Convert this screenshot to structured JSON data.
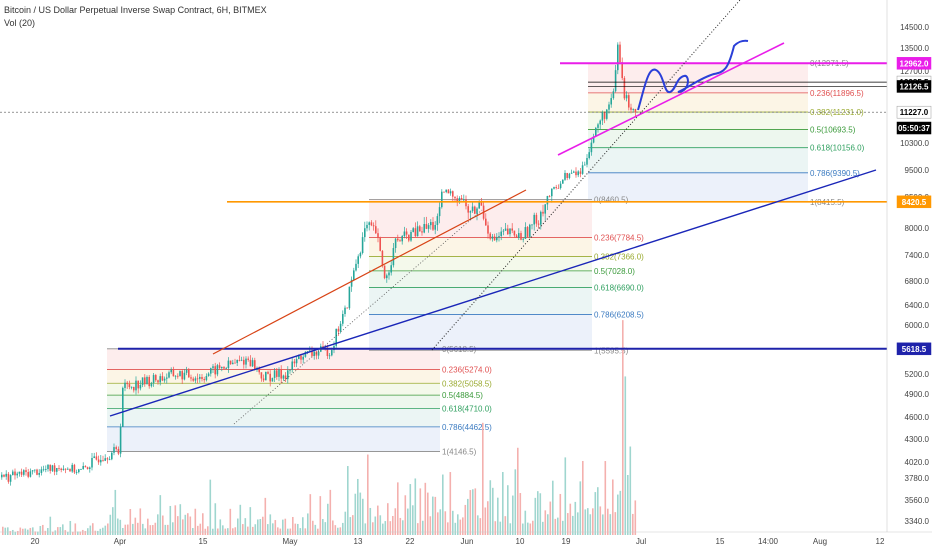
{
  "header": {
    "title": "Bitcoin / US Dollar Perpetual Inverse Swap Contract, 6H, BITMEX",
    "volume_label": "Vol (20)"
  },
  "chart_data": {
    "type": "candlestick",
    "symbol": "Bitcoin / US Dollar Perpetual Inverse Swap Contract",
    "interval": "6H",
    "exchange": "BITMEX",
    "indicators": [
      "Vol (20)"
    ],
    "y_scale": "log",
    "ylim": [
      3200,
      15000
    ],
    "y_ticks": [
      3340,
      3560,
      3780,
      4020,
      4300,
      4600,
      4900,
      5200,
      5600,
      6000,
      6400,
      6800,
      7400,
      8000,
      8500,
      9500,
      10300,
      11200,
      12700,
      13500,
      14500
    ],
    "y_tick_labels": [
      "3340.0",
      "3560.0",
      "3780.0",
      "4020.0",
      "4300.0",
      "4600.0",
      "4900.0",
      "5200.0",
      "5600.0",
      "6000.0",
      "6400.0",
      "6800.0",
      "7400.0",
      "8000.0",
      "8500.0",
      "9500.0",
      "10300.0",
      "11200.0",
      "12700.0",
      "13500.0",
      "14500.0"
    ],
    "x_axis_labels": [
      "20",
      "Apr",
      "15",
      "May",
      "13",
      "22",
      "Jun",
      "10",
      "19",
      "Jul",
      "15",
      "14:00",
      "Aug",
      "12"
    ],
    "price_flags": [
      {
        "label": "12962.0",
        "value": 12962,
        "bg": "#e91ee9",
        "fg": "#ffffff"
      },
      {
        "label": "12285.5",
        "value": 12285.5,
        "bg": "#ffffff",
        "fg": "#000000"
      },
      {
        "label": "12126.5",
        "value": 12126.5,
        "bg": "#000000",
        "fg": "#ffffff"
      },
      {
        "label": "11227.0",
        "value": 11227,
        "bg": "#ffffff",
        "fg": "#000000"
      },
      {
        "label": "05:50:37",
        "value": 10740,
        "bg": "#000000",
        "fg": "#ffffff"
      },
      {
        "label": "8420.5",
        "value": 8420.5,
        "bg": "#ff9800",
        "fg": "#ffffff"
      },
      {
        "label": "5618.5",
        "value": 5618.5,
        "bg": "#1e22aa",
        "fg": "#ffffff"
      }
    ],
    "horizontal_lines": [
      {
        "value": 12962,
        "color": "#e91ee9"
      },
      {
        "value": 12285.5,
        "color": "#000000"
      },
      {
        "value": 12126.5,
        "color": "#000000"
      },
      {
        "value": 11227,
        "color": "#555555"
      },
      {
        "value": 8420.5,
        "color": "#ff9800"
      },
      {
        "value": 5618.5,
        "color": "#1e22aa"
      }
    ],
    "fib_sets": [
      {
        "name": "fib-set-1",
        "color_zone": "april",
        "levels": [
          {
            "label": "0(5618.5)",
            "value": 5618.5,
            "color": "#888888"
          },
          {
            "label": "0.236(5274.0)",
            "value": 5274,
            "color": "#e05050"
          },
          {
            "label": "0.382(5058.5)",
            "value": 5058.5,
            "color": "#9aaa30"
          },
          {
            "label": "0.5(4884.5)",
            "value": 4884.5,
            "color": "#3a9a3a"
          },
          {
            "label": "0.618(4710.0)",
            "value": 4710,
            "color": "#30a060"
          },
          {
            "label": "0.786(4462.5)",
            "value": 4462.5,
            "color": "#3a7ac0"
          },
          {
            "label": "1(4146.5)",
            "value": 4146.5,
            "color": "#888888"
          }
        ]
      },
      {
        "name": "fib-set-2",
        "color_zone": "may-june",
        "levels": [
          {
            "label": "0(8460.5)",
            "value": 8460.5,
            "color": "#888888"
          },
          {
            "label": "0.236(7784.5)",
            "value": 7784.5,
            "color": "#e05050"
          },
          {
            "label": "0.382(7366.0)",
            "value": 7366,
            "color": "#9aaa30"
          },
          {
            "label": "0.5(7028.0)",
            "value": 7028,
            "color": "#3a9a3a"
          },
          {
            "label": "0.618(6690.0)",
            "value": 6690,
            "color": "#30a060"
          },
          {
            "label": "0.786(6208.5)",
            "value": 6208.5,
            "color": "#3a7ac0"
          },
          {
            "label": "1(5595.5)",
            "value": 5595.5,
            "color": "#888888"
          }
        ]
      },
      {
        "name": "fib-set-3",
        "color_zone": "june-july",
        "levels": [
          {
            "label": "0(12971.5)",
            "value": 12971.5,
            "color": "#888888"
          },
          {
            "label": "0.236(11896.5)",
            "value": 11896.5,
            "color": "#e05050"
          },
          {
            "label": "0.382(11231.0)",
            "value": 11231,
            "color": "#9aaa30"
          },
          {
            "label": "0.5(10693.5)",
            "value": 10693.5,
            "color": "#3a9a3a"
          },
          {
            "label": "0.618(10156.0)",
            "value": 10156,
            "color": "#30a060"
          },
          {
            "label": "0.786(9390.5)",
            "value": 9390.5,
            "color": "#3a7ac0"
          },
          {
            "label": "1(8415.5)",
            "value": 8415.5,
            "color": "#888888"
          }
        ]
      }
    ],
    "price_series_approx": [
      {
        "period": "mid-March",
        "value": 3850
      },
      {
        "period": "late March",
        "value": 4100
      },
      {
        "period": "Apr",
        "value": 5000
      },
      {
        "period": "Apr 15",
        "value": 5200
      },
      {
        "period": "May",
        "value": 5600
      },
      {
        "period": "May 13",
        "value": 7900
      },
      {
        "period": "May 22",
        "value": 7800
      },
      {
        "period": "Jun",
        "value": 8500
      },
      {
        "period": "Jun 10",
        "value": 7800
      },
      {
        "period": "Jun 19",
        "value": 9300
      },
      {
        "period": "late June peak",
        "value": 13600
      },
      {
        "period": "end of data",
        "value": 11227
      }
    ]
  },
  "colors": {
    "up": "#26a69a",
    "down": "#ef5350",
    "magenta": "#e91ee9",
    "orange": "#ff9800",
    "navy": "#1e22aa",
    "red_trend": "#d84315",
    "projection": "#2a3fd8"
  }
}
